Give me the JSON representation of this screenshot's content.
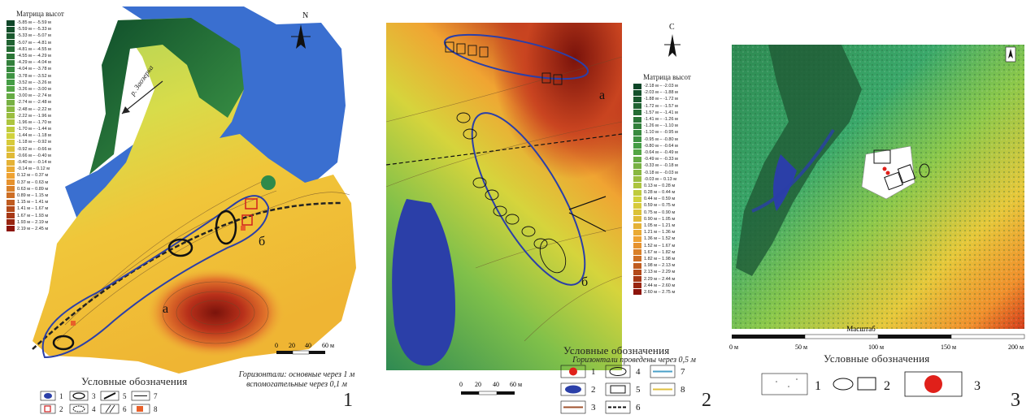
{
  "panels": [
    {
      "number": "1",
      "matrix_title": "Матрица высот",
      "compass_letter": "N",
      "river_label": "р. Заозерка",
      "site_labels": [
        "а",
        "б"
      ],
      "scale_ticks": [
        "0",
        "20",
        "40",
        "60 м"
      ],
      "contour_note_1": "Горизонтали: основные через 1 м",
      "contour_note_2": "вспомогательные через 0,1 м",
      "legend_title": "Условные обозначения",
      "legend_items": [
        "1",
        "2",
        "3",
        "4",
        "5",
        "6",
        "7",
        "8"
      ],
      "elevation_ranges": [
        "-5.85 м – -5.59 м",
        "-5.59 м – -5.33 м",
        "-5.33 м – -5.07 м",
        "-5.07 м – -4.81 м",
        "-4.81 м – -4.55 м",
        "-4.55 м – -4.29 м",
        "-4.29 м – -4.04 м",
        "-4.04 м – -3.78 м",
        "-3.78 м – -3.52 м",
        "-3.52 м – -3.26 м",
        "-3.26 м – -3.00 м",
        "-3.00 м – -2.74 м",
        "-2.74 м – -2.48 м",
        "-2.48 м – -2.22 м",
        "-2.22 м – -1.96 м",
        "-1.96 м – -1.70 м",
        "-1.70 м – -1.44 м",
        "-1.44 м – -1.18 м",
        "-1.18 м – -0.92 м",
        "-0.92 м – -0.66 м",
        "-0.66 м – -0.40 м",
        "-0.40 м – -0.14 м",
        "-0.14 м – 0.12 м",
        "0.12 м – 0.37 м",
        "0.37 м – 0.63 м",
        "0.63 м – 0.89 м",
        "0.89 м – 1.15 м",
        "1.15 м – 1.41 м",
        "1.41 м – 1.67 м",
        "1.67 м – 1.93 м",
        "1.93 м – 2.19 м",
        "2.19 м – 2.45 м"
      ]
    },
    {
      "number": "2",
      "matrix_title": "Матрица высот",
      "compass_letter": "С",
      "site_labels": [
        "а",
        "б"
      ],
      "scale_ticks": [
        "0",
        "20",
        "40",
        "60 м"
      ],
      "legend_title": "Условные обозначения",
      "contour_note": "Горизонтали проведены через 0,5 м",
      "legend_items": [
        "1",
        "2",
        "3",
        "4",
        "5",
        "6",
        "7",
        "8"
      ],
      "elevation_ranges": [
        "-2.18 м – -2.03 м",
        "-2.03 м – -1.88 м",
        "-1.88 м – -1.72 м",
        "-1.72 м – -1.57 м",
        "-1.57 м – -1.41 м",
        "-1.41 м – -1.26 м",
        "-1.26 м – -1.10 м",
        "-1.10 м – -0.95 м",
        "-0.95 м – -0.80 м",
        "-0.80 м – -0.64 м",
        "-0.64 м – -0.49 м",
        "-0.49 м – -0.33 м",
        "-0.33 м – -0.18 м",
        "-0.18 м – -0.03 м",
        "-0.03 м – 0.13 м",
        "0.13 м – 0.28 м",
        "0.28 м – 0.44 м",
        "0.44 м – 0.59 м",
        "0.59 м – 0.75 м",
        "0.75 м – 0.90 м",
        "0.90 м – 1.05 м",
        "1.05 м – 1.21 м",
        "1.21 м – 1.36 м",
        "1.36 м – 1.52 м",
        "1.52 м – 1.67 м",
        "1.67 м – 1.82 м",
        "1.82 м – 1.98 м",
        "1.98 м – 2.13 м",
        "2.13 м – 2.29 м",
        "2.29 м – 2.44 м",
        "2.44 м – 2.60 м",
        "2.60 м – 2.75 м"
      ]
    },
    {
      "number": "3",
      "scale_title": "Масштаб",
      "scale_ticks": [
        "0 м",
        "50 м",
        "100 м",
        "150 м",
        "200 м"
      ],
      "legend_title": "Условные обозначения",
      "legend_items": [
        "1",
        "2",
        "3"
      ]
    }
  ],
  "colors": {
    "water": "#3a6fd0",
    "deep_green": "#1f6b3a",
    "mid_green": "#7bc043",
    "yellow": "#f2d43c",
    "orange": "#e8872a",
    "dark_red": "#8b1a0e",
    "outline_blue": "#2b3fa8"
  }
}
